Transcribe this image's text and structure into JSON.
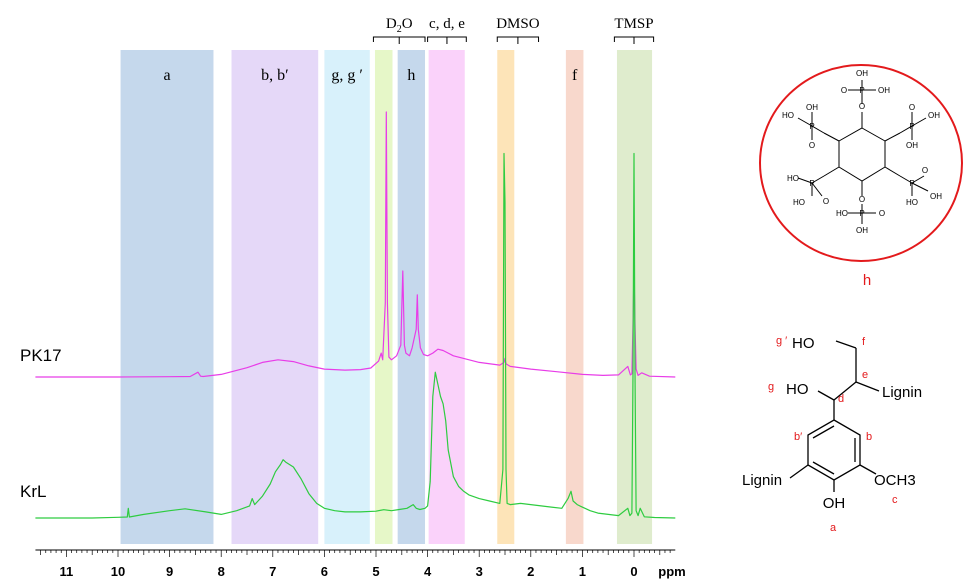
{
  "chart_data": {
    "type": "line",
    "x_axis": {
      "unit": "ppm",
      "ticks": [
        "11",
        "10",
        "9",
        "8",
        "7",
        "6",
        "5",
        "4",
        "3",
        "2",
        "1",
        "0"
      ],
      "range": [
        11.6,
        -0.8
      ],
      "reversed": true
    },
    "regions": [
      {
        "label": "a",
        "from": 9.95,
        "to": 8.15,
        "color": "#c5d8ec"
      },
      {
        "label": "b, b′",
        "from": 7.8,
        "to": 6.12,
        "color": "#e5d8f8"
      },
      {
        "label": "g, g ′",
        "from": 6.0,
        "to": 5.12,
        "color": "#d8f1fb"
      },
      {
        "label": "",
        "from": 5.02,
        "to": 4.68,
        "color": "#e6f7c8"
      },
      {
        "label": "h",
        "from": 4.58,
        "to": 4.05,
        "color": "#c5d8ec"
      },
      {
        "label": "",
        "from": 3.98,
        "to": 3.28,
        "color": "#fad2fa"
      },
      {
        "label": "",
        "from": 2.65,
        "to": 2.32,
        "color": "#fde4b8"
      },
      {
        "label": "f",
        "from": 1.32,
        "to": 0.98,
        "color": "#f8d8cc"
      },
      {
        "label": "",
        "from": 0.33,
        "to": -0.35,
        "color": "#dfeccd"
      }
    ],
    "brackets": [
      {
        "label": "D2O",
        "label_main": "D",
        "label_sub": "2",
        "label_tail": "O",
        "from": 5.05,
        "to": 4.05
      },
      {
        "label": "c, d, e",
        "from": 4.0,
        "to": 3.25
      },
      {
        "label": "DMSO",
        "from": 2.65,
        "to": 1.85
      },
      {
        "label": "TMSP",
        "from": 0.38,
        "to": -0.38
      }
    ],
    "series": [
      {
        "name": "PK17",
        "color": "#e83de8",
        "x": [
          11.6,
          10.0,
          9.0,
          8.6,
          8.45,
          8.4,
          8.35,
          8.0,
          7.5,
          7.2,
          6.9,
          6.6,
          6.3,
          6.0,
          5.6,
          5.3,
          5.1,
          4.95,
          4.9,
          4.87,
          4.82,
          4.8,
          4.78,
          4.75,
          4.7,
          4.6,
          4.52,
          4.48,
          4.45,
          4.42,
          4.35,
          4.3,
          4.22,
          4.2,
          4.18,
          4.14,
          4.08,
          4.0,
          3.9,
          3.8,
          3.7,
          3.6,
          3.5,
          3.3,
          3.0,
          2.6,
          2.52,
          2.5,
          2.48,
          2.4,
          2.0,
          1.5,
          1.0,
          0.6,
          0.3,
          0.12,
          0.07,
          0.04,
          0.02,
          0.0,
          -0.02,
          -0.04,
          -0.08,
          -0.15,
          -0.3,
          -0.8
        ],
        "y": [
          0.0,
          0.0,
          0.1,
          0.2,
          1.8,
          0.3,
          0.2,
          1.0,
          3.5,
          5.5,
          6.5,
          5.8,
          4.2,
          3.0,
          2.6,
          2.8,
          3.4,
          6.0,
          9.0,
          6.5,
          28.0,
          100.0,
          28.0,
          7.5,
          6.5,
          8.0,
          12.0,
          40.0,
          12.0,
          9.0,
          8.0,
          11.0,
          18.0,
          31.0,
          18.0,
          11.0,
          8.5,
          8.0,
          9.0,
          10.5,
          10.0,
          9.0,
          8.0,
          7.0,
          5.5,
          4.5,
          5.5,
          7.0,
          5.0,
          4.0,
          3.0,
          2.0,
          1.0,
          0.6,
          0.8,
          4.0,
          0.8,
          1.2,
          20.0,
          41.0,
          20.0,
          3.0,
          0.6,
          1.6,
          0.3,
          0.0
        ]
      },
      {
        "name": "KrL",
        "color": "#2ecc40",
        "x": [
          11.6,
          10.5,
          10.0,
          9.82,
          9.8,
          9.78,
          9.5,
          9.0,
          8.7,
          8.3,
          8.0,
          7.7,
          7.45,
          7.4,
          7.35,
          7.2,
          7.05,
          6.95,
          6.85,
          6.8,
          6.75,
          6.6,
          6.45,
          6.3,
          6.15,
          6.0,
          5.8,
          5.6,
          5.3,
          5.0,
          4.85,
          4.7,
          4.55,
          4.4,
          4.28,
          4.22,
          4.15,
          4.05,
          4.0,
          3.95,
          3.9,
          3.85,
          3.8,
          3.75,
          3.7,
          3.65,
          3.6,
          3.5,
          3.4,
          3.3,
          3.2,
          3.0,
          2.8,
          2.6,
          2.54,
          2.52,
          2.5,
          2.48,
          2.46,
          2.4,
          2.2,
          2.0,
          1.8,
          1.6,
          1.4,
          1.28,
          1.22,
          1.18,
          1.1,
          1.05,
          0.95,
          0.85,
          0.7,
          0.5,
          0.3,
          0.12,
          0.08,
          0.04,
          0.02,
          0.0,
          -0.02,
          -0.04,
          -0.08,
          -0.12,
          -0.2,
          -0.4,
          -0.8
        ],
        "y": [
          0.0,
          0.0,
          0.3,
          0.4,
          4.0,
          0.4,
          1.5,
          3.0,
          3.8,
          2.5,
          1.5,
          3.0,
          5.0,
          8.0,
          5.5,
          9.0,
          14.0,
          19.0,
          22.0,
          24.0,
          23.0,
          21.0,
          16.0,
          10.0,
          6.0,
          4.0,
          3.0,
          2.5,
          2.5,
          2.8,
          3.4,
          3.0,
          3.5,
          4.0,
          5.5,
          4.0,
          3.5,
          4.0,
          5.0,
          15.0,
          50.0,
          60.0,
          55.0,
          50.0,
          47.0,
          40.0,
          28.0,
          17.0,
          13.0,
          11.0,
          9.5,
          8.0,
          7.0,
          6.0,
          20.0,
          150.0,
          130.0,
          20.0,
          6.0,
          5.5,
          6.0,
          5.5,
          5.0,
          4.5,
          4.0,
          8.0,
          11.0,
          7.0,
          5.5,
          5.0,
          4.0,
          3.0,
          2.0,
          1.5,
          1.0,
          4.0,
          1.0,
          2.0,
          60.0,
          150.0,
          60.0,
          3.0,
          1.0,
          4.0,
          0.5,
          0.2,
          0.0
        ]
      }
    ],
    "structures": {
      "phytate_label": "h",
      "phytate_groups": [
        "OH",
        "O",
        "P",
        "HO"
      ],
      "lignin_labels": [
        "g ′",
        "g",
        "f",
        "e",
        "d",
        "b′",
        "b",
        "c",
        "a"
      ],
      "lignin_groups": [
        "HO",
        "Lignin",
        "OCH3",
        "OH"
      ],
      "colors": {
        "accent": "#e31a1c",
        "label": "#e31a1c",
        "ring": "#e31a1c"
      }
    }
  }
}
